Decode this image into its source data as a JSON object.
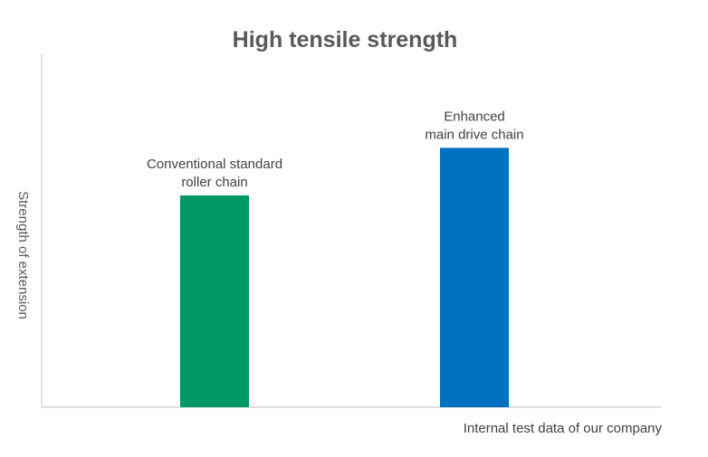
{
  "chart_data": {
    "type": "bar",
    "title": "High tensile strength",
    "ylabel": "Strength of extension",
    "xlabel": "",
    "footnote": "Internal test data of our company",
    "categories": [
      [
        "Conventional standard",
        "roller chain"
      ],
      [
        "Enhanced",
        "main drive chain"
      ]
    ],
    "values": [
      60,
      73.5
    ],
    "colors": [
      "#009966",
      "#0070c0"
    ],
    "ylim": [
      0,
      100
    ],
    "grid": false,
    "legend": "none",
    "y_ticks_shown": false
  }
}
